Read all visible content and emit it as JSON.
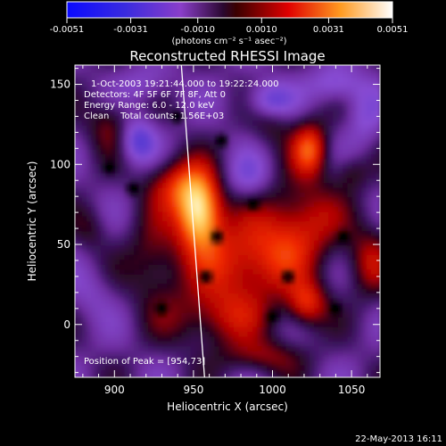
{
  "chart_data": {
    "type": "heatmap",
    "title": "Reconstructed RHESSI Image",
    "xlabel": "Heliocentric X (arcsec)",
    "ylabel": "Heliocentric Y (arcsec)",
    "xlim": [
      875,
      1068
    ],
    "ylim": [
      -33,
      162
    ],
    "x_ticks": [
      "900",
      "950",
      "1000",
      "1050"
    ],
    "x_tick_values": [
      900,
      950,
      1000,
      1050
    ],
    "y_ticks": [
      "0",
      "50",
      "100",
      "150"
    ],
    "y_tick_values": [
      0,
      50,
      100,
      150
    ],
    "colorbar": {
      "unit_label": "(photons cm⁻² s⁻¹ asec⁻²)",
      "min": -0.0051,
      "max": 0.0051,
      "tick_labels": [
        "-0.0051",
        "-0.0031",
        "-0.0010",
        "0.0010",
        "0.0031",
        "0.0051"
      ],
      "tick_values": [
        -0.0051,
        -0.0031,
        -0.001,
        0.001,
        0.0031,
        0.0051
      ],
      "colormap": [
        "#000000",
        "#1a0dff",
        "#9b3fc8",
        "#5a1a80",
        "#ff0000",
        "#ff9020",
        "#ffffff"
      ]
    },
    "annotations": {
      "time_range": "1-Oct-2003 19:21:44.000 to 19:22:24.000",
      "detectors": "Detectors: 4F 5F 6F 7F 8F, Att 0",
      "energy_range": "Energy Range: 6.0 - 12.0 keV",
      "clean_counts": "Clean    Total counts: 1.56E+03",
      "peak_position": "Position of Peak = [954,73]"
    },
    "peak": {
      "x": 954,
      "y": 73
    },
    "limb_line": {
      "x1": 942,
      "y1": 162,
      "x2": 957,
      "y2": 0
    },
    "blobs": [
      {
        "x": 954,
        "y": 70,
        "amp": 1.0,
        "sx": 10,
        "sy": 16
      },
      {
        "x": 940,
        "y": 88,
        "amp": 0.45,
        "sx": 14,
        "sy": 12
      },
      {
        "x": 985,
        "y": 40,
        "amp": 0.55,
        "sx": 25,
        "sy": 18
      },
      {
        "x": 1022,
        "y": 13,
        "amp": 0.5,
        "sx": 9,
        "sy": 10
      },
      {
        "x": 1024,
        "y": 110,
        "amp": 0.6,
        "sx": 8,
        "sy": 12
      },
      {
        "x": 1018,
        "y": 65,
        "amp": 0.45,
        "sx": 18,
        "sy": 18
      },
      {
        "x": 1062,
        "y": 40,
        "amp": 0.35,
        "sx": 10,
        "sy": 16
      },
      {
        "x": 965,
        "y": 5,
        "amp": 0.4,
        "sx": 22,
        "sy": 14
      },
      {
        "x": 925,
        "y": 40,
        "amp": 0.3,
        "sx": 12,
        "sy": 20
      },
      {
        "x": 897,
        "y": 125,
        "amp": 0.3,
        "sx": 10,
        "sy": 12
      },
      {
        "x": 995,
        "y": -20,
        "amp": 0.3,
        "sx": 18,
        "sy": 8
      },
      {
        "x": 1000,
        "y": 125,
        "amp": 0.2,
        "sx": 10,
        "sy": 10
      },
      {
        "x": 885,
        "y": 60,
        "amp": 0.18,
        "sx": 8,
        "sy": 10
      },
      {
        "x": 1050,
        "y": 95,
        "amp": 0.22,
        "sx": 8,
        "sy": 8
      },
      {
        "x": 915,
        "y": 115,
        "amp": -0.45,
        "sx": 8,
        "sy": 10
      },
      {
        "x": 998,
        "y": 140,
        "amp": -0.4,
        "sx": 10,
        "sy": 8
      },
      {
        "x": 1040,
        "y": 150,
        "amp": -0.3,
        "sx": 12,
        "sy": 8
      },
      {
        "x": 985,
        "y": 92,
        "amp": -0.25,
        "sx": 10,
        "sy": 10
      },
      {
        "x": 1058,
        "y": 130,
        "amp": -0.22,
        "sx": 8,
        "sy": 14
      },
      {
        "x": 885,
        "y": 20,
        "amp": -0.15,
        "sx": 10,
        "sy": 12
      },
      {
        "x": 920,
        "y": 150,
        "amp": -0.2,
        "sx": 12,
        "sy": 8
      }
    ],
    "dark_spots": [
      {
        "x": 912,
        "y": 85
      },
      {
        "x": 965,
        "y": 55
      },
      {
        "x": 968,
        "y": 115
      },
      {
        "x": 988,
        "y": 75
      },
      {
        "x": 1010,
        "y": 30
      },
      {
        "x": 1045,
        "y": 55
      },
      {
        "x": 930,
        "y": 10
      },
      {
        "x": 1000,
        "y": 5
      },
      {
        "x": 958,
        "y": 30
      },
      {
        "x": 1040,
        "y": 10
      },
      {
        "x": 897,
        "y": 98
      },
      {
        "x": 940,
        "y": 130
      }
    ]
  },
  "footer": {
    "date_stamp": "22-May-2013 16:11"
  }
}
